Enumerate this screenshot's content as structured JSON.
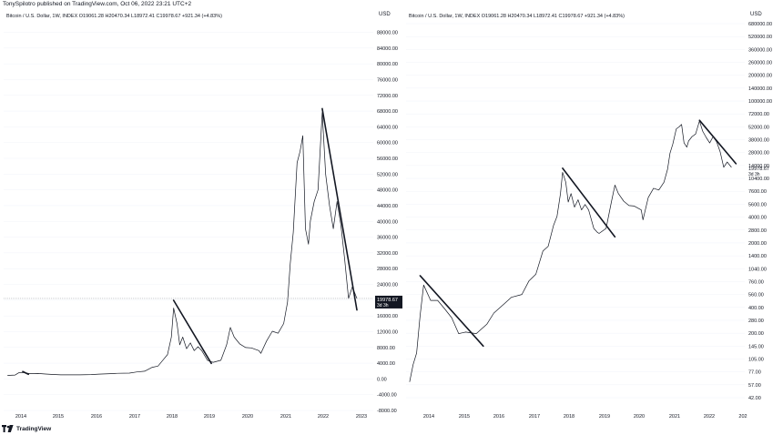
{
  "header": {
    "publisher": "TonySpilotro published on TradingView.com, Oct 06, 2022 23:21 UTC+2"
  },
  "footer": {
    "brand": "TradingView"
  },
  "colors": {
    "price_line": "#131722",
    "trend_line": "#131722",
    "current_label_bg": "#131722",
    "grid": "#f0f3fa",
    "axis_text": "#131722",
    "reference_line": "#9598a1"
  },
  "chart_data": [
    {
      "type": "line",
      "scale": "linear",
      "symbol_line": "Bitcoin / U.S. Dollar, 1W, INDEX  O19061.28  H20470.34  L18972.41  C19978.67  +921.34 (+4.83%)",
      "y_unit": "USD",
      "y_ticks": [
        "88000.00",
        "84000.00",
        "80000.00",
        "76000.00",
        "72000.00",
        "68000.00",
        "64000.00",
        "60000.00",
        "56000.00",
        "52000.00",
        "48000.00",
        "44000.00",
        "40000.00",
        "36000.00",
        "32000.00",
        "28000.00",
        "24000.00",
        "20000.00",
        "16000.00",
        "12000.00",
        "8000.00",
        "4000.00",
        "0.00",
        "-4000.00",
        "-8000.00"
      ],
      "x_ticks": [
        "2014",
        "2015",
        "2016",
        "2017",
        "2018",
        "2019",
        "2020",
        "2021",
        "2022",
        "2023"
      ],
      "ylim": [
        -8000,
        90000
      ],
      "current": {
        "price": "19978.67",
        "countdown": "3d 3h"
      },
      "series": [
        {
          "x": [
            2013.6,
            2013.8,
            2013.9,
            2014.0,
            2014.2,
            2014.4,
            2014.6,
            2014.8,
            2015.0,
            2015.2,
            2015.5,
            2015.8,
            2016.0,
            2016.3,
            2016.5,
            2016.8,
            2017.0,
            2017.2,
            2017.4,
            2017.55,
            2017.7,
            2017.8,
            2017.9,
            2017.96,
            2018.05,
            2018.12,
            2018.2,
            2018.3,
            2018.4,
            2018.5,
            2018.6,
            2018.7,
            2018.85,
            2018.95,
            2019.0,
            2019.2,
            2019.35,
            2019.45,
            2019.55,
            2019.7,
            2019.85,
            2020.0,
            2020.2,
            2020.25,
            2020.4,
            2020.55,
            2020.7,
            2020.85,
            2020.95,
            2021.02,
            2021.1,
            2021.2,
            2021.28,
            2021.35,
            2021.42,
            2021.5,
            2021.55,
            2021.65,
            2021.75,
            2021.86,
            2021.95,
            2022.05,
            2022.15,
            2022.25,
            2022.35,
            2022.45,
            2022.55,
            2022.65,
            2022.77
          ],
          "y": [
            100,
            200,
            800,
            850,
            550,
            600,
            450,
            350,
            250,
            250,
            240,
            320,
            430,
            550,
            650,
            700,
            1000,
            1200,
            2200,
            2500,
            4300,
            5500,
            10000,
            17500,
            13500,
            8000,
            10000,
            7000,
            8500,
            6500,
            7500,
            6500,
            4000,
            3600,
            3500,
            4000,
            8000,
            12500,
            10000,
            8200,
            7300,
            7200,
            6500,
            5800,
            9000,
            11500,
            11000,
            13500,
            19000,
            29000,
            37000,
            55000,
            58000,
            62000,
            38000,
            34000,
            40000,
            45000,
            48000,
            68000,
            52000,
            44000,
            38000,
            45000,
            39000,
            30000,
            20000,
            23000,
            19978
          ]
        }
      ],
      "trend_lines": [
        {
          "x": [
            2014.0,
            2014.15
          ],
          "y": [
            1100,
            400
          ]
        },
        {
          "x": [
            2017.96,
            2018.95
          ],
          "y": [
            19500,
            3200
          ]
        },
        {
          "x": [
            2021.86,
            2022.77
          ],
          "y": [
            69000,
            17000
          ]
        }
      ]
    },
    {
      "type": "line",
      "scale": "log",
      "symbol_line": "Bitcoin / U.S. Dollar, 1W, INDEX  O19061.28  H20470.34  L18972.41  C19978.67  +921.34 (+4.83%)",
      "y_unit": "USD",
      "y_ticks": [
        "680000.00",
        "520000.00",
        "360000.00",
        "260000.00",
        "200000.00",
        "140000.00",
        "100000.00",
        "72000.00",
        "52000.00",
        "38000.00",
        "28000.00",
        "14000.00",
        "10400.00",
        "7600.00",
        "5600.00",
        "4000.00",
        "2800.00",
        "2000.00",
        "1400.00",
        "1040.00",
        "760.00",
        "560.00",
        "400.00",
        "280.00",
        "200.00",
        "145.00",
        "105.00",
        "77.00",
        "57.00",
        "42.00"
      ],
      "x_ticks": [
        "2014",
        "2015",
        "2016",
        "2017",
        "2018",
        "2019",
        "2020",
        "2021",
        "2022",
        "202"
      ],
      "ylim": [
        30,
        800000
      ],
      "current": {
        "price": "19978.67",
        "countdown": "3d 3h"
      },
      "series": [
        {
          "x": [
            2013.6,
            2013.7,
            2013.8,
            2013.9,
            2014.0,
            2014.2,
            2014.4,
            2014.6,
            2014.8,
            2015.0,
            2015.2,
            2015.5,
            2015.8,
            2016.0,
            2016.3,
            2016.5,
            2016.8,
            2017.0,
            2017.2,
            2017.4,
            2017.55,
            2017.7,
            2017.8,
            2017.9,
            2017.96,
            2018.05,
            2018.12,
            2018.2,
            2018.3,
            2018.4,
            2018.5,
            2018.6,
            2018.7,
            2018.85,
            2018.95,
            2019.0,
            2019.2,
            2019.35,
            2019.45,
            2019.55,
            2019.7,
            2019.85,
            2020.0,
            2020.2,
            2020.25,
            2020.4,
            2020.55,
            2020.7,
            2020.85,
            2020.95,
            2021.02,
            2021.1,
            2021.2,
            2021.28,
            2021.35,
            2021.42,
            2021.5,
            2021.55,
            2021.65,
            2021.75,
            2021.86,
            2021.95,
            2022.05,
            2022.15,
            2022.25,
            2022.35,
            2022.45,
            2022.55,
            2022.65,
            2022.77
          ],
          "y": [
            70,
            110,
            150,
            400,
            900,
            600,
            600,
            480,
            380,
            250,
            260,
            250,
            320,
            430,
            550,
            650,
            700,
            1000,
            1200,
            2200,
            2500,
            4300,
            5500,
            10000,
            17500,
            13500,
            8000,
            10000,
            7000,
            8500,
            6500,
            7500,
            6500,
            4000,
            3600,
            3500,
            4000,
            8000,
            12500,
            10000,
            8200,
            7300,
            7200,
            6500,
            5000,
            9000,
            11500,
            11000,
            13500,
            19000,
            29000,
            37000,
            55000,
            58000,
            62000,
            38000,
            34000,
            40000,
            45000,
            48000,
            68000,
            52000,
            44000,
            38000,
            45000,
            39000,
            30000,
            20000,
            23000,
            19978
          ]
        }
      ],
      "trend_lines": [
        {
          "x": [
            2013.9,
            2015.7
          ],
          "y": [
            1150,
            180
          ]
        },
        {
          "x": [
            2017.96,
            2019.45
          ],
          "y": [
            19500,
            3200
          ]
        },
        {
          "x": [
            2021.86,
            2022.9
          ],
          "y": [
            69000,
            22000
          ]
        }
      ]
    }
  ]
}
